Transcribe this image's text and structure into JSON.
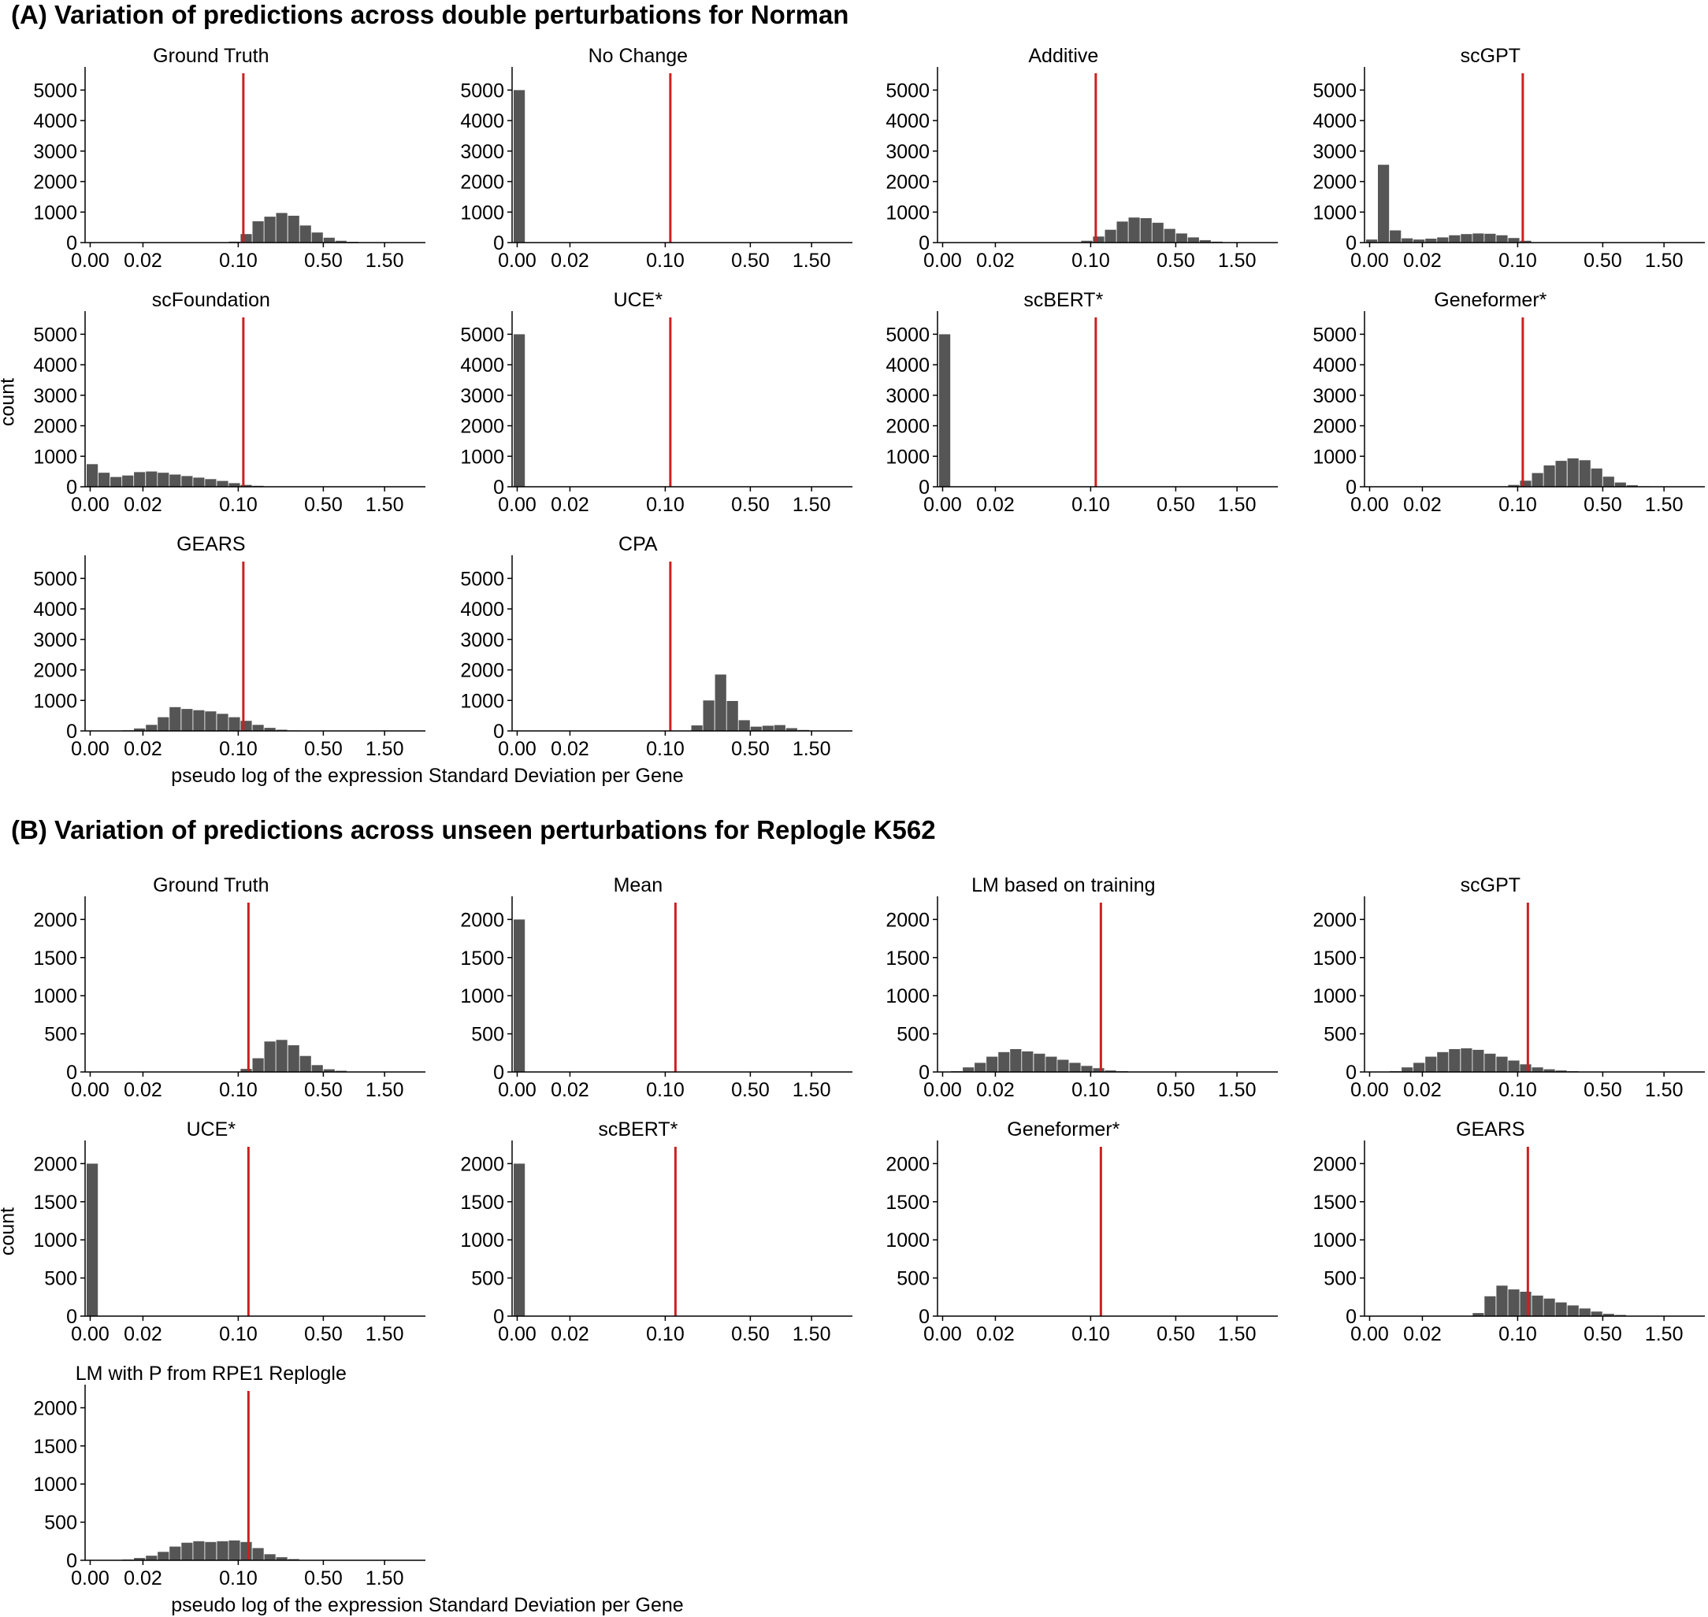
{
  "panel_a": {
    "title": "(A) Variation of predictions across double perturbations for Norman",
    "xlabel": "pseudo log of the expression Standard Deviation per Gene",
    "ylabel": "count"
  },
  "panel_b": {
    "title": "(B) Variation of predictions across unseen perturbations for Replogle K562",
    "xlabel": "pseudo log of the expression Standard Deviation per Gene",
    "ylabel": "count"
  },
  "colors": {
    "bars": "#555555",
    "reference_line": "#cc2020",
    "axis": "#000000"
  },
  "chart_data": [
    {
      "type": "bar",
      "group": "A",
      "x_ticks": [
        "0.00",
        "0.02",
        "0.10",
        "0.50",
        "1.50"
      ],
      "y_ticks": [
        0,
        1000,
        2000,
        3000,
        4000,
        5000
      ],
      "ylim": [
        0,
        5500
      ],
      "reference_line_x": 0.12,
      "bin_edges_pseudo_log": [
        0,
        0.0028,
        0.0056,
        0.0084,
        0.0112,
        0.014,
        0.0168,
        0.0196,
        0.0224,
        0.0252,
        0.028,
        0.0308,
        0.0336,
        0.0364,
        0.0392,
        0.042,
        0.0448,
        0.0476,
        0.0504,
        0.0532,
        0.056,
        0.0588,
        0.0616,
        0.0644,
        0.0672,
        0.07
      ],
      "series": [
        {
          "name": "Ground Truth",
          "counts": [
            0,
            0,
            0,
            0,
            0,
            0,
            0,
            0,
            0,
            0,
            0,
            0,
            30,
            280,
            700,
            850,
            970,
            880,
            560,
            330,
            160,
            60,
            25,
            10,
            5
          ]
        },
        {
          "name": "No Change",
          "counts": [
            5000,
            0,
            0,
            0,
            0,
            0,
            0,
            0,
            0,
            0,
            0,
            0,
            0,
            0,
            0,
            0,
            0,
            0,
            0,
            0,
            0,
            0,
            0,
            0,
            0
          ]
        },
        {
          "name": "Additive",
          "counts": [
            0,
            0,
            0,
            0,
            0,
            0,
            0,
            0,
            0,
            0,
            0,
            10,
            60,
            200,
            420,
            690,
            820,
            800,
            650,
            450,
            300,
            170,
            80,
            30,
            10
          ]
        },
        {
          "name": "scGPT",
          "counts": [
            100,
            2550,
            400,
            140,
            100,
            130,
            170,
            240,
            280,
            300,
            290,
            240,
            150,
            60,
            0,
            0,
            0,
            0,
            0,
            0,
            0,
            0,
            0,
            0,
            0
          ]
        },
        {
          "name": "scFoundation",
          "counts": [
            740,
            460,
            320,
            370,
            480,
            500,
            460,
            400,
            350,
            300,
            250,
            190,
            120,
            60,
            30,
            0,
            0,
            0,
            0,
            0,
            0,
            0,
            0,
            0,
            0
          ]
        },
        {
          "name": "UCE*",
          "counts": [
            5000,
            0,
            0,
            0,
            0,
            0,
            0,
            0,
            0,
            0,
            0,
            0,
            0,
            0,
            0,
            0,
            0,
            0,
            0,
            0,
            0,
            0,
            0,
            0,
            0
          ]
        },
        {
          "name": "scBERT*",
          "counts": [
            5000,
            0,
            0,
            0,
            0,
            0,
            0,
            0,
            0,
            0,
            0,
            0,
            0,
            0,
            0,
            0,
            0,
            0,
            0,
            0,
            0,
            0,
            0,
            0,
            0
          ]
        },
        {
          "name": "Geneformer*",
          "counts": [
            0,
            0,
            0,
            0,
            0,
            0,
            0,
            0,
            0,
            0,
            0,
            10,
            60,
            200,
            450,
            700,
            850,
            930,
            870,
            600,
            330,
            140,
            50,
            15,
            5
          ]
        },
        {
          "name": "GEARS",
          "counts": [
            0,
            0,
            0,
            20,
            80,
            200,
            450,
            780,
            720,
            680,
            640,
            560,
            450,
            330,
            200,
            100,
            40,
            15,
            5,
            0,
            0,
            0,
            0,
            0,
            0
          ]
        },
        {
          "name": "CPA",
          "counts": [
            0,
            0,
            0,
            0,
            0,
            0,
            0,
            0,
            0,
            0,
            0,
            0,
            0,
            0,
            0,
            180,
            1000,
            1850,
            980,
            350,
            140,
            170,
            190,
            90,
            30
          ]
        }
      ]
    },
    {
      "type": "bar",
      "group": "B",
      "x_ticks": [
        "0.00",
        "0.02",
        "0.10",
        "0.50",
        "1.50"
      ],
      "y_ticks": [
        0,
        500,
        1000,
        1500,
        2000
      ],
      "ylim": [
        0,
        2200
      ],
      "reference_line_x": 0.13,
      "bin_edges_pseudo_log": [
        0,
        0.0028,
        0.0056,
        0.0084,
        0.0112,
        0.014,
        0.0168,
        0.0196,
        0.0224,
        0.0252,
        0.028,
        0.0308,
        0.0336,
        0.0364,
        0.0392,
        0.042,
        0.0448,
        0.0476,
        0.0504,
        0.0532,
        0.056,
        0.0588,
        0.0616,
        0.0644,
        0.0672,
        0.07
      ],
      "series": [
        {
          "name": "Ground Truth",
          "counts": [
            0,
            0,
            0,
            0,
            0,
            0,
            0,
            0,
            0,
            0,
            0,
            0,
            0,
            40,
            180,
            400,
            420,
            350,
            210,
            90,
            35,
            15,
            5,
            0,
            0
          ]
        },
        {
          "name": "Mean",
          "counts": [
            2000,
            0,
            0,
            0,
            0,
            0,
            0,
            0,
            0,
            0,
            0,
            0,
            0,
            0,
            0,
            0,
            0,
            0,
            0,
            0,
            0,
            0,
            0,
            0,
            0
          ]
        },
        {
          "name": "LM based on training",
          "counts": [
            0,
            10,
            60,
            120,
            200,
            260,
            300,
            270,
            240,
            200,
            160,
            120,
            80,
            50,
            20,
            10,
            0,
            0,
            0,
            0,
            0,
            0,
            0,
            0,
            0
          ]
        },
        {
          "name": "scGPT",
          "counts": [
            0,
            0,
            10,
            60,
            120,
            200,
            260,
            300,
            310,
            290,
            240,
            200,
            150,
            100,
            60,
            35,
            20,
            10,
            5,
            0,
            0,
            0,
            0,
            0,
            0
          ]
        },
        {
          "name": "UCE*",
          "counts": [
            2000,
            0,
            0,
            0,
            0,
            0,
            0,
            0,
            0,
            0,
            0,
            0,
            0,
            0,
            0,
            0,
            0,
            0,
            0,
            0,
            0,
            0,
            0,
            0,
            0
          ]
        },
        {
          "name": "scBERT*",
          "counts": [
            2000,
            0,
            0,
            0,
            0,
            0,
            0,
            0,
            0,
            0,
            0,
            0,
            0,
            0,
            0,
            0,
            0,
            0,
            0,
            0,
            0,
            0,
            0,
            0,
            0
          ]
        },
        {
          "name": "Geneformer*",
          "counts": [
            0,
            0,
            0,
            0,
            0,
            0,
            0,
            0,
            0,
            0,
            0,
            0,
            0,
            0,
            0,
            0,
            0,
            0,
            0,
            0,
            0,
            0,
            0,
            0,
            0
          ],
          "counts_fine": [
            0,
            0,
            0,
            0,
            0,
            0,
            0,
            0,
            0,
            0,
            0,
            0,
            0,
            0,
            0,
            0,
            0,
            0,
            0,
            0,
            0,
            0,
            0,
            0,
            0
          ]
        },
        {
          "name": "GEARS",
          "counts": [
            0,
            0,
            0,
            0,
            0,
            0,
            0,
            0,
            0,
            40,
            260,
            400,
            350,
            320,
            270,
            230,
            180,
            140,
            100,
            60,
            30,
            15,
            5,
            0,
            0
          ]
        },
        {
          "name": "LM with P from RPE1 Replogle",
          "counts": [
            0,
            0,
            0,
            10,
            30,
            60,
            110,
            180,
            230,
            250,
            240,
            250,
            260,
            240,
            160,
            80,
            40,
            15,
            5,
            0,
            0,
            0,
            0,
            0,
            0
          ]
        }
      ]
    }
  ]
}
